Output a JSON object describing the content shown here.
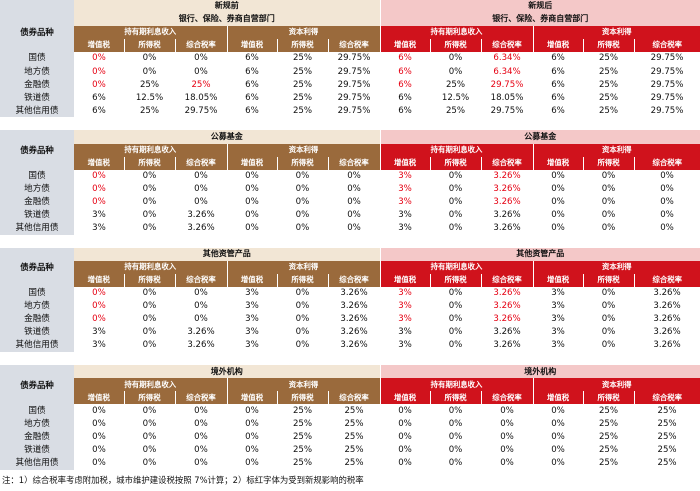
{
  "header": {
    "old_label": "新规前",
    "new_label": "新规后"
  },
  "row_header": "债券品种",
  "col_groups": {
    "holding": "持有期利息收入",
    "capital": "资本利得"
  },
  "col_labels": [
    "增值税",
    "所得税",
    "综合税率",
    "增值税",
    "所得税",
    "综合税率"
  ],
  "sections": [
    {
      "title": "银行、保险、券商自营部门",
      "rows": [
        {
          "name": "国债",
          "old": [
            "0%",
            "0%",
            "0%",
            "6%",
            "25%",
            "29.75%"
          ],
          "new": [
            "6%",
            "0%",
            "6.34%",
            "6%",
            "25%",
            "29.75%"
          ]
        },
        {
          "name": "地方债",
          "old": [
            "0%",
            "0%",
            "0%",
            "6%",
            "25%",
            "29.75%"
          ],
          "new": [
            "6%",
            "0%",
            "6.34%",
            "6%",
            "25%",
            "29.75%"
          ]
        },
        {
          "name": "金融债",
          "old": [
            "0%",
            "25%",
            "25%",
            "6%",
            "25%",
            "29.75%"
          ],
          "new": [
            "6%",
            "25%",
            "29.75%",
            "6%",
            "25%",
            "29.75%"
          ]
        },
        {
          "name": "铁道债",
          "old": [
            "6%",
            "12.5%",
            "18.05%",
            "6%",
            "25%",
            "29.75%"
          ],
          "new": [
            "6%",
            "12.5%",
            "18.05%",
            "6%",
            "25%",
            "29.75%"
          ]
        },
        {
          "name": "其他信用债",
          "old": [
            "6%",
            "25%",
            "29.75%",
            "6%",
            "25%",
            "29.75%"
          ],
          "new": [
            "6%",
            "25%",
            "29.75%",
            "6%",
            "25%",
            "29.75%"
          ]
        }
      ],
      "red_old": [
        [
          0,
          0
        ],
        [
          1,
          0
        ],
        [
          2,
          0
        ],
        [
          2,
          2
        ]
      ],
      "red_new": [
        [
          0,
          0
        ],
        [
          0,
          2
        ],
        [
          1,
          0
        ],
        [
          1,
          2
        ],
        [
          2,
          0
        ],
        [
          2,
          2
        ]
      ]
    },
    {
      "title": "公募基金",
      "rows": [
        {
          "name": "国债",
          "old": [
            "0%",
            "0%",
            "0%",
            "0%",
            "0%",
            "0%"
          ],
          "new": [
            "3%",
            "0%",
            "3.26%",
            "0%",
            "0%",
            "0%"
          ]
        },
        {
          "name": "地方债",
          "old": [
            "0%",
            "0%",
            "0%",
            "0%",
            "0%",
            "0%"
          ],
          "new": [
            "3%",
            "0%",
            "3.26%",
            "0%",
            "0%",
            "0%"
          ]
        },
        {
          "name": "金融债",
          "old": [
            "0%",
            "0%",
            "0%",
            "0%",
            "0%",
            "0%"
          ],
          "new": [
            "3%",
            "0%",
            "3.26%",
            "0%",
            "0%",
            "0%"
          ]
        },
        {
          "name": "铁道债",
          "old": [
            "3%",
            "0%",
            "3.26%",
            "0%",
            "0%",
            "0%"
          ],
          "new": [
            "3%",
            "0%",
            "3.26%",
            "0%",
            "0%",
            "0%"
          ]
        },
        {
          "name": "其他信用债",
          "old": [
            "3%",
            "0%",
            "3.26%",
            "0%",
            "0%",
            "0%"
          ],
          "new": [
            "3%",
            "0%",
            "3.26%",
            "0%",
            "0%",
            "0%"
          ]
        }
      ],
      "red_old": [
        [
          0,
          0
        ],
        [
          1,
          0
        ],
        [
          2,
          0
        ]
      ],
      "red_new": [
        [
          0,
          0
        ],
        [
          0,
          2
        ],
        [
          1,
          0
        ],
        [
          1,
          2
        ],
        [
          2,
          0
        ],
        [
          2,
          2
        ]
      ]
    },
    {
      "title": "其他资管产品",
      "rows": [
        {
          "name": "国债",
          "old": [
            "0%",
            "0%",
            "0%",
            "3%",
            "0%",
            "3.26%"
          ],
          "new": [
            "3%",
            "0%",
            "3.26%",
            "3%",
            "0%",
            "3.26%"
          ]
        },
        {
          "name": "地方债",
          "old": [
            "0%",
            "0%",
            "0%",
            "3%",
            "0%",
            "3.26%"
          ],
          "new": [
            "3%",
            "0%",
            "3.26%",
            "3%",
            "0%",
            "3.26%"
          ]
        },
        {
          "name": "金融债",
          "old": [
            "0%",
            "0%",
            "0%",
            "3%",
            "0%",
            "3.26%"
          ],
          "new": [
            "3%",
            "0%",
            "3.26%",
            "3%",
            "0%",
            "3.26%"
          ]
        },
        {
          "name": "铁道债",
          "old": [
            "3%",
            "0%",
            "3.26%",
            "3%",
            "0%",
            "3.26%"
          ],
          "new": [
            "3%",
            "0%",
            "3.26%",
            "3%",
            "0%",
            "3.26%"
          ]
        },
        {
          "name": "其他信用债",
          "old": [
            "3%",
            "0%",
            "3.26%",
            "3%",
            "0%",
            "3.26%"
          ],
          "new": [
            "3%",
            "0%",
            "3.26%",
            "3%",
            "0%",
            "3.26%"
          ]
        }
      ],
      "red_old": [
        [
          0,
          0
        ],
        [
          1,
          0
        ],
        [
          2,
          0
        ]
      ],
      "red_new": [
        [
          0,
          0
        ],
        [
          0,
          2
        ],
        [
          1,
          0
        ],
        [
          1,
          2
        ],
        [
          2,
          0
        ],
        [
          2,
          2
        ]
      ]
    },
    {
      "title": "境外机构",
      "rows": [
        {
          "name": "国债",
          "old": [
            "0%",
            "0%",
            "0%",
            "0%",
            "25%",
            "25%"
          ],
          "new": [
            "0%",
            "0%",
            "0%",
            "0%",
            "25%",
            "25%"
          ]
        },
        {
          "name": "地方债",
          "old": [
            "0%",
            "0%",
            "0%",
            "0%",
            "25%",
            "25%"
          ],
          "new": [
            "0%",
            "0%",
            "0%",
            "0%",
            "25%",
            "25%"
          ]
        },
        {
          "name": "金融债",
          "old": [
            "0%",
            "0%",
            "0%",
            "0%",
            "25%",
            "25%"
          ],
          "new": [
            "0%",
            "0%",
            "0%",
            "0%",
            "25%",
            "25%"
          ]
        },
        {
          "name": "铁道债",
          "old": [
            "0%",
            "0%",
            "0%",
            "0%",
            "25%",
            "25%"
          ],
          "new": [
            "0%",
            "0%",
            "0%",
            "0%",
            "25%",
            "25%"
          ]
        },
        {
          "name": "其他信用债",
          "old": [
            "0%",
            "0%",
            "0%",
            "0%",
            "25%",
            "25%"
          ],
          "new": [
            "0%",
            "0%",
            "0%",
            "0%",
            "25%",
            "25%"
          ]
        }
      ],
      "red_old": [],
      "red_new": []
    }
  ],
  "footnote": "注：1）综合税率考虑附加税，城市维护建设税按照 7%计算；2）标红字体为受到新规影响的税率"
}
